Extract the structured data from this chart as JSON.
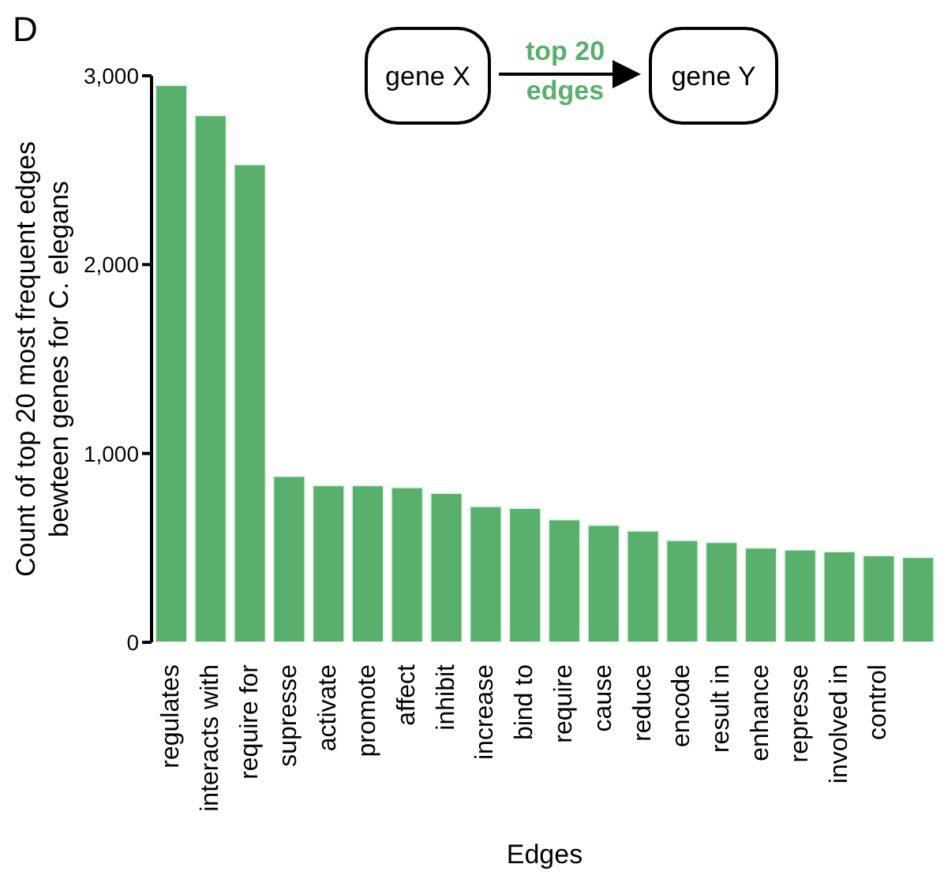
{
  "chart_data": {
    "type": "bar",
    "xlabel": "Edges",
    "ylabel": "Count of top 20 most frequent edges\nbewteen genes for C. elegans",
    "categories": [
      "regulates",
      "interacts with",
      "require for",
      "supresse",
      "activate",
      "promote",
      "affect",
      "inhibit",
      "increase",
      "bind to",
      "require",
      "cause",
      "reduce",
      "encode",
      "result in",
      "enhance",
      "represse",
      "involved in",
      "control",
      null
    ],
    "values": [
      2950,
      2790,
      2530,
      880,
      830,
      830,
      820,
      790,
      720,
      710,
      650,
      620,
      590,
      540,
      530,
      500,
      490,
      480,
      460,
      450
    ],
    "color": "#58b06c",
    "ylim": [
      0,
      3000
    ],
    "yticks": [
      {
        "value": 0,
        "label": "0"
      },
      {
        "value": 1000,
        "label": "1,000"
      },
      {
        "value": 2000,
        "label": "2,000"
      },
      {
        "value": 3000,
        "label": "3,000"
      }
    ],
    "annotations": [
      "D",
      "gene X",
      "top 20\nedges",
      "gene Y"
    ]
  }
}
